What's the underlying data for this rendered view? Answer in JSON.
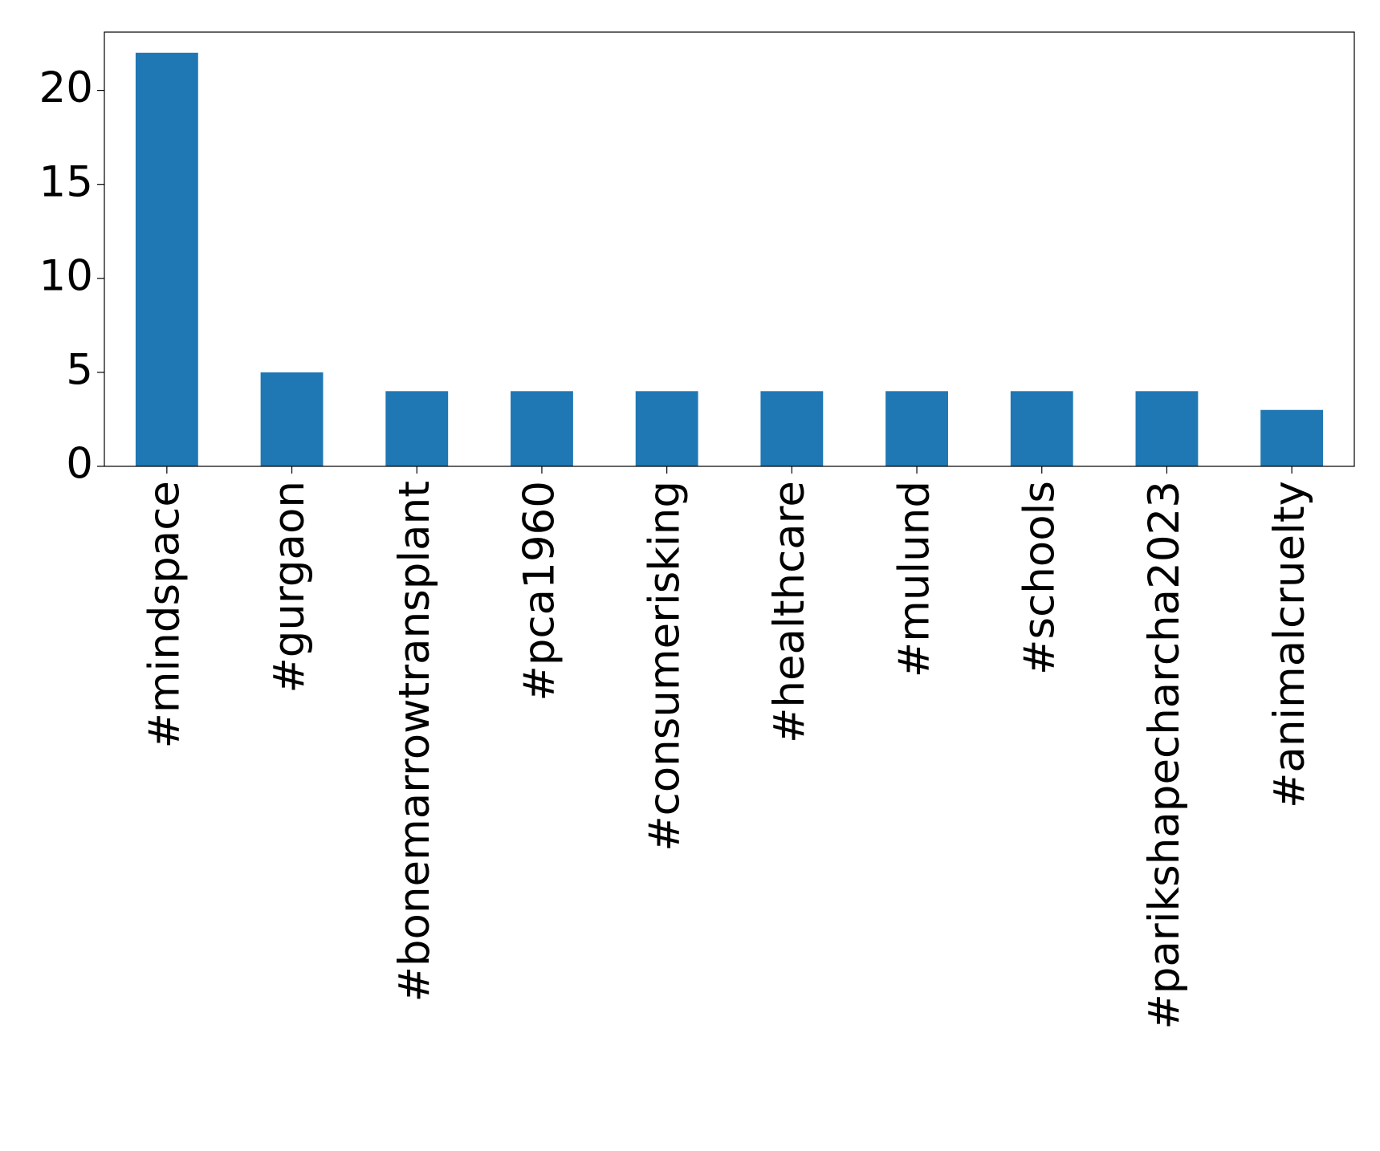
{
  "chart_data": {
    "type": "bar",
    "categories": [
      "#mindspace",
      "#gurgaon",
      "#bonemarrowtransplant",
      "#pca1960",
      "#consumerisking",
      "#healthcare",
      "#mulund",
      "#schools",
      "#parikshapecharcha2023",
      "#animalcruelty"
    ],
    "values": [
      22,
      5,
      4,
      4,
      4,
      4,
      4,
      4,
      4,
      3
    ],
    "color": "#1f77b4",
    "ylim": [
      0,
      23.1
    ],
    "yticks": [
      0,
      5,
      10,
      15,
      20
    ],
    "grid": false
  }
}
